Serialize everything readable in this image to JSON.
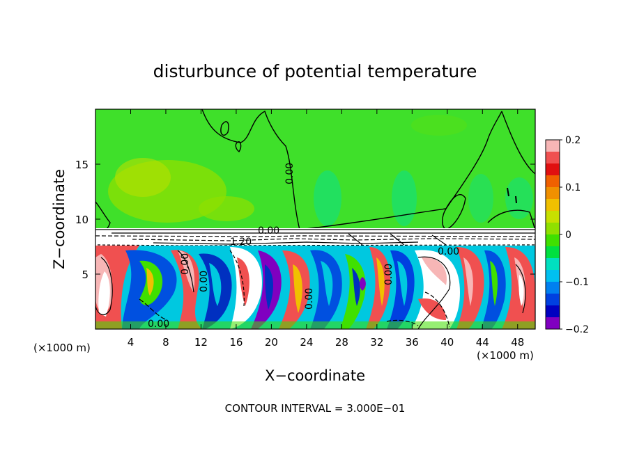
{
  "chart_data": {
    "type": "heatmap",
    "title": "disturbunce of potential temperature",
    "xlabel": "X−coordinate",
    "ylabel": "Z−coordinate",
    "x_unit_left": "(×1000 m)",
    "x_unit_right": "(×1000 m)",
    "xlim": [
      0,
      50
    ],
    "ylim": [
      0,
      20
    ],
    "x_ticks": [
      "4",
      "8",
      "12",
      "16",
      "20",
      "24",
      "28",
      "32",
      "36",
      "40",
      "44",
      "48"
    ],
    "x_tick_values": [
      4,
      8,
      12,
      16,
      20,
      24,
      28,
      32,
      36,
      40,
      44,
      48
    ],
    "y_ticks": [
      "5",
      "10",
      "15"
    ],
    "y_tick_values": [
      5,
      10,
      15
    ],
    "colorbar": {
      "min": -0.2,
      "max": 0.2,
      "tick_labels": [
        "0.2",
        "0.1",
        "0",
        "−0.1",
        "−0.2"
      ],
      "tick_values": [
        0.2,
        0.1,
        0,
        -0.1,
        -0.2
      ],
      "colors": [
        "#f7b6b6",
        "#f05050",
        "#e01010",
        "#f06000",
        "#f09000",
        "#f0c000",
        "#c8e000",
        "#90e000",
        "#40e000",
        "#00e040",
        "#00e0c0",
        "#00c0f0",
        "#0080f0",
        "#0040e0",
        "#0000c0",
        "#8000c0"
      ]
    },
    "contour_labels": [
      "0.00",
      "0.00",
      "1.20",
      "0.00",
      "0.00",
      "0.00",
      "0.00",
      "0.00",
      "0.00"
    ],
    "footer": "CONTOUR INTERVAL = 3.000E−01",
    "grid": false
  }
}
